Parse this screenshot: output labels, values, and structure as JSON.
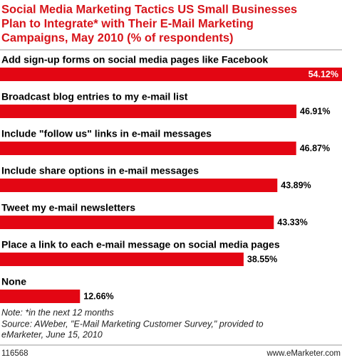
{
  "chart_data": {
    "type": "bar",
    "title": [
      "Social Media Marketing Tactics US Small Businesses",
      "Plan to Integrate* with Their E-Mail Marketing",
      "Campaigns, May 2010 (% of respondents)"
    ],
    "categories": [
      "Add sign-up forms on social media pages like Facebook",
      "Broadcast blog entries to my e-mail list",
      "Include \"follow us\" links in e-mail messages",
      "Include share options in e-mail messages",
      "Tweet my e-mail newsletters",
      "Place a link to each e-mail message on social media pages",
      "None"
    ],
    "values": [
      54.12,
      46.91,
      46.87,
      43.89,
      43.33,
      38.55,
      12.66
    ],
    "value_labels": [
      "54.12%",
      "46.91%",
      "46.87%",
      "43.89%",
      "43.33%",
      "38.55%",
      "12.66%"
    ],
    "color": "#e30613",
    "notes": [
      "Note: *in the next 12 months",
      "Source: AWeber, \"E-Mail Marketing Customer Survey,\" provided to",
      "eMarketer, June 15, 2010"
    ],
    "chart_id": "116568",
    "website": "www.eMarketer.com"
  }
}
